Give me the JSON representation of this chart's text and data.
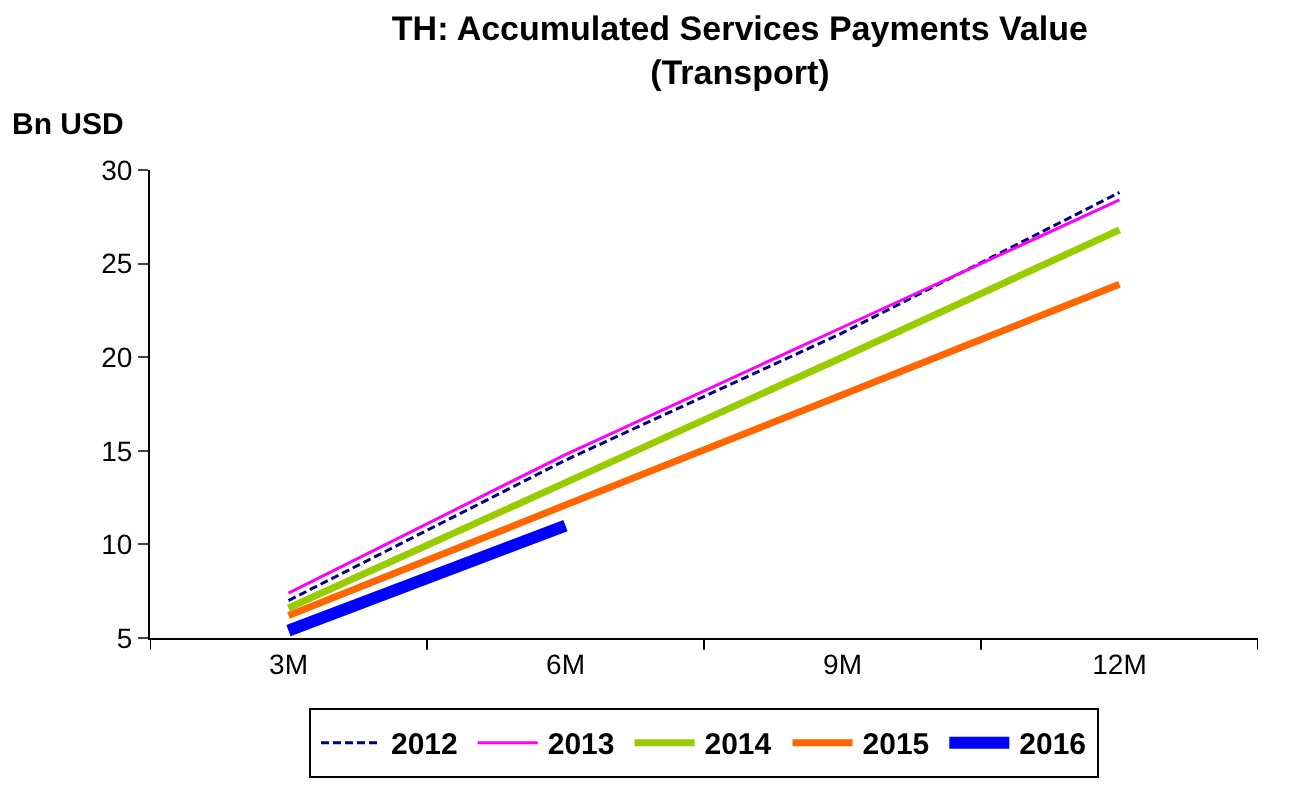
{
  "chart_data": {
    "type": "line",
    "title": "TH: Accumulated Services Payments Value\n(Transport)",
    "ylabel": "Bn USD",
    "categories": [
      "3M",
      "6M",
      "9M",
      "12M"
    ],
    "ylim": [
      5,
      30
    ],
    "yticks": [
      5,
      10,
      15,
      20,
      25,
      30
    ],
    "grid": false,
    "legend": "bottom",
    "marker": "none",
    "series": [
      {
        "name": "2012",
        "color": "#000080",
        "line_style": "dashed",
        "values": [
          7.0,
          14.5,
          21.3,
          28.8
        ]
      },
      {
        "name": "2013",
        "color": "#ff00ff",
        "line_style": "solid",
        "values": [
          7.4,
          14.8,
          21.6,
          28.4
        ]
      },
      {
        "name": "2014",
        "color": "#99cc00",
        "line_style": "solid",
        "values": [
          6.6,
          13.3,
          20.0,
          26.8
        ]
      },
      {
        "name": "2015",
        "color": "#ff6600",
        "line_style": "solid",
        "values": [
          6.2,
          12.1,
          18.0,
          23.9
        ]
      },
      {
        "name": "2016",
        "color": "#0000ff",
        "line_style": "solid",
        "values": [
          5.4,
          11.0,
          null,
          null
        ]
      }
    ]
  }
}
